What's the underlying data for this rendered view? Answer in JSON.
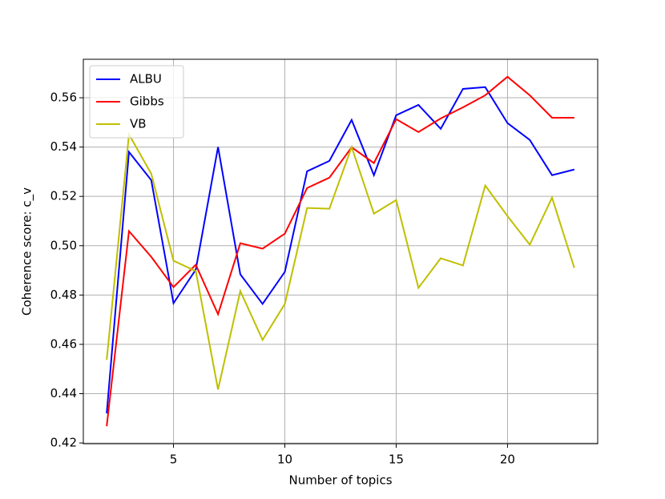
{
  "chart_data": {
    "type": "line",
    "xlabel": "Number of topics",
    "ylabel": "Coherence score: c_v",
    "x": [
      2,
      3,
      4,
      5,
      6,
      7,
      8,
      9,
      10,
      11,
      12,
      13,
      14,
      15,
      16,
      17,
      18,
      19,
      20,
      21,
      22,
      23
    ],
    "series": [
      {
        "name": "ALBU",
        "color": "#0000ff",
        "values": [
          0.432,
          0.538,
          0.5266,
          0.4767,
          0.4903,
          0.54,
          0.4884,
          0.4764,
          0.4894,
          0.5302,
          0.5344,
          0.551,
          0.5286,
          0.5529,
          0.5571,
          0.5474,
          0.5636,
          0.5643,
          0.5497,
          0.5429,
          0.5286,
          0.5309
        ]
      },
      {
        "name": "Gibbs",
        "color": "#ff0000",
        "values": [
          0.4268,
          0.5059,
          0.4955,
          0.4832,
          0.4923,
          0.4722,
          0.501,
          0.4988,
          0.5049,
          0.5234,
          0.5276,
          0.5399,
          0.5335,
          0.5513,
          0.5461,
          0.5516,
          0.5561,
          0.561,
          0.5685,
          0.561,
          0.5519,
          0.5519
        ]
      },
      {
        "name": "VB",
        "color": "#bfbf00",
        "values": [
          0.4537,
          0.5451,
          0.5292,
          0.4939,
          0.4897,
          0.4417,
          0.4816,
          0.4618,
          0.4764,
          0.5153,
          0.515,
          0.54,
          0.513,
          0.5185,
          0.4829,
          0.4949,
          0.492,
          0.5244,
          0.512,
          0.5004,
          0.5195,
          0.491
        ]
      }
    ],
    "xlim": [
      0.95,
      24.05
    ],
    "xticks": [
      5,
      10,
      15,
      20
    ],
    "ylim": [
      0.4197,
      0.5756
    ],
    "yticks": [
      0.42,
      0.44,
      0.46,
      0.48,
      {
        "value": 0.5,
        "label": "0.50"
      },
      0.52,
      0.54,
      0.56
    ],
    "grid": true,
    "legend": "upper-left"
  }
}
